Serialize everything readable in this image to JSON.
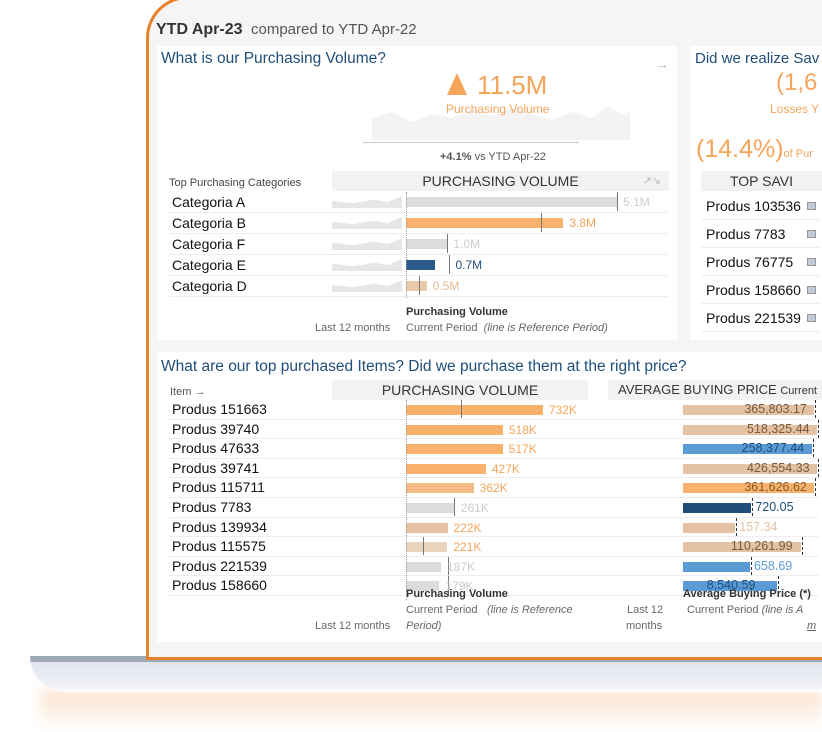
{
  "header": {
    "period": "YTD Apr-23",
    "compared": "compared to YTD Apr-22"
  },
  "volume": {
    "question": "What is our Purchasing Volume?",
    "kpi": "11.5M",
    "kpi_label": "Purchasing Volume",
    "change": "+4.1%",
    "change_suffix": "vs YTD Apr-22",
    "section_label": "Top Purchasing Categories",
    "col_header": "PURCHASING VOLUME",
    "trend_label": "Last 12 months",
    "legend_title": "Purchasing Volume",
    "legend_current": "Current Period",
    "legend_ref": "(line is Reference Period)",
    "categories": [
      {
        "name": "Categoria A",
        "label": "5.1M",
        "value": 5.1,
        "ref": 5.1,
        "color": "#dcdcdc",
        "lc": "#ccc"
      },
      {
        "name": "Categoria B",
        "label": "3.8M",
        "value": 3.8,
        "ref": 3.25,
        "color": "#f9b26b",
        "lc": "#f5a55a"
      },
      {
        "name": "Categoria F",
        "label": "1.0M",
        "value": 1.0,
        "ref": 0.98,
        "color": "#dcdcdc",
        "lc": "#ccc"
      },
      {
        "name": "Categoria E",
        "label": "0.7M",
        "value": 0.7,
        "ref": 1.05,
        "color": "#2c5a8a",
        "lc": "#1f4e79"
      },
      {
        "name": "Categoria D",
        "label": "0.5M",
        "value": 0.5,
        "ref": 0.32,
        "color": "#e9c9a8",
        "lc": "#e3b994"
      }
    ]
  },
  "savings": {
    "question": "Did we realize Sav",
    "kpi": "(1,6",
    "kpi_label": "Losses Y",
    "pct": "(14.4%)",
    "pct_suffix": "of Pur",
    "col_header": "TOP SAVI",
    "items": [
      "Produs 103536",
      "Produs 7783",
      "Produs 76775",
      "Produs 158660",
      "Produs 221539"
    ]
  },
  "items": {
    "question": "What are our top purchased Items? Did we purchase them at the right price?",
    "item_header": "Item →",
    "vol_header": "PURCHASING VOLUME",
    "price_header": "AVERAGE BUYING PRICE",
    "price_header_suffix": "Current",
    "trend_label": "Last 12 months",
    "trend_label2a": "Last 12",
    "trend_label2b": "months",
    "legend_title": "Purchasing Volume",
    "legend_current": "Current Period",
    "legend_ref1": "(line is Reference",
    "legend_ref2": "Period)",
    "price_legend_title": "Average Buying Price (*)",
    "price_legend_current": "Current Period",
    "price_legend_ref": "(line is A",
    "price_legend_ref2": "m",
    "rows": [
      {
        "name": "Produs 151663",
        "vol": "732K",
        "v": 732,
        "ref": 293,
        "vc": "#f9b26b",
        "price": "365,803.17",
        "pf": 0.98,
        "pc": "#e3c3a3",
        "ptc": "#7a5a3a"
      },
      {
        "name": "Produs 39740",
        "vol": "518K",
        "v": 518,
        "ref": null,
        "vc": "#f9b26b",
        "price": "518,325.44",
        "pf": 1.0,
        "pc": "#e3c3a3",
        "ptc": "#7a5a3a"
      },
      {
        "name": "Produs 47633",
        "vol": "517K",
        "v": 517,
        "ref": null,
        "vc": "#f9b26b",
        "price": "258,377.44",
        "pf": 0.96,
        "pc": "#5b9bd5",
        "ptc": "#1f4e79"
      },
      {
        "name": "Produs 39741",
        "vol": "427K",
        "v": 427,
        "ref": null,
        "vc": "#f9b26b",
        "price": "426,554.33",
        "pf": 1.0,
        "pc": "#e3c3a3",
        "ptc": "#7a5a3a"
      },
      {
        "name": "Produs 115711",
        "vol": "362K",
        "v": 362,
        "ref": null,
        "vc": "#f3bb85",
        "price": "361,626.62",
        "pf": 0.98,
        "pc": "#f9b26b",
        "ptc": "#8a5a2a"
      },
      {
        "name": "Produs 7783",
        "vol": "261K",
        "v": 261,
        "ref": 255,
        "vc": "#dcdcdc",
        "price": "720.05",
        "pf": 0.51,
        "pc": "#1f4e79",
        "ptc": "#1f4e79"
      },
      {
        "name": "Produs 139934",
        "vol": "222K",
        "v": 222,
        "ref": null,
        "vc": "#e3c3a3",
        "price": "157.34",
        "pf": 0.39,
        "pc": "#e3c3a3",
        "ptc": "#e3c3a3"
      },
      {
        "name": "Produs 115575",
        "vol": "221K",
        "v": 221,
        "ref": 92,
        "vc": "#ead4bd",
        "price": "110,261.99",
        "pf": 0.88,
        "pc": "#e3c3a3",
        "ptc": "#7a5a3a"
      },
      {
        "name": "Produs 221539",
        "vol": "187K",
        "v": 187,
        "ref": 225,
        "vc": "#dcdcdc",
        "price": "658.69",
        "pf": 0.5,
        "pc": "#5b9bd5",
        "ptc": "#5b9bd5"
      },
      {
        "name": "Produs 158660",
        "vol": "179K",
        "v": 179,
        "ref": 225,
        "vc": "#dcdcdc",
        "price": "8,540.59",
        "pf": 0.7,
        "pc": "#5b9bd5",
        "ptc": "#1f4e79"
      }
    ]
  },
  "colors": {
    "accent": "#f5a55a",
    "title": "#1f4e79",
    "frame": "#e8812c"
  }
}
